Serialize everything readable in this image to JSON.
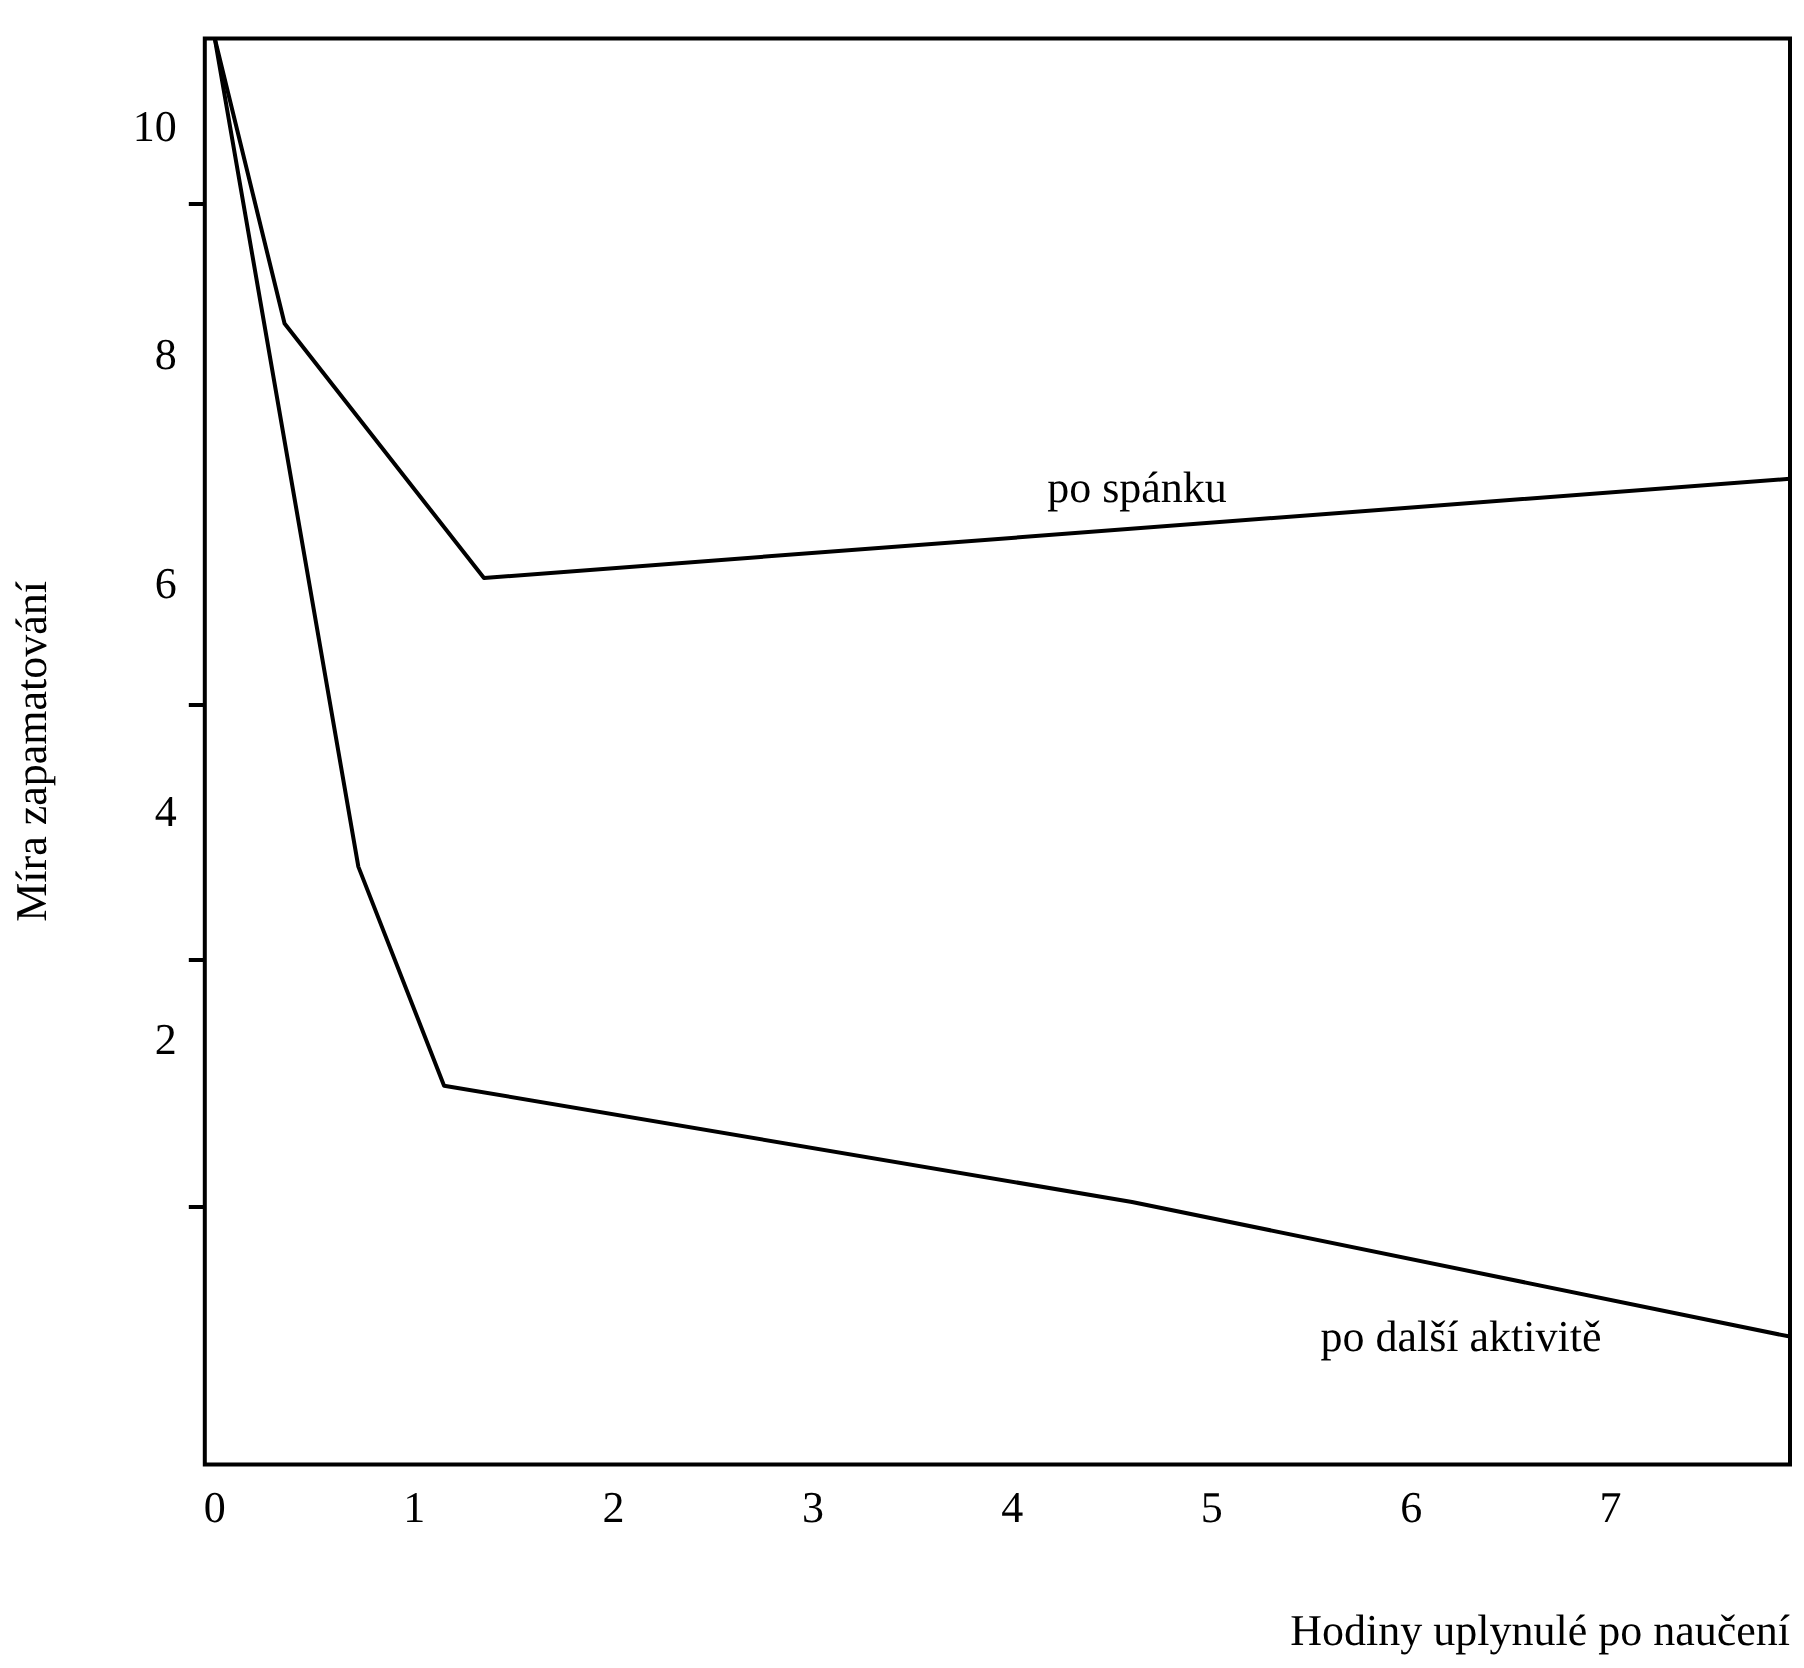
{
  "chart_data": {
    "type": "line",
    "xlabel": "Hodiny uplynulé po naučení",
    "ylabel": "Míra zapamatování",
    "xlim": [
      -0.05,
      7.9
    ],
    "xticks": [
      0,
      1,
      2,
      3,
      4,
      5,
      6,
      7
    ],
    "ylim": [
      -1.7,
      10.8
    ],
    "yticks": [
      10,
      8,
      6,
      4,
      2,
      {
        "value": 9.35,
        "label": null
      },
      {
        "value": 4.96,
        "label": null
      },
      {
        "value": 2.72,
        "label": null
      },
      {
        "value": 0.56,
        "label": null
      }
    ],
    "grid": false,
    "legend": false,
    "marker": "none",
    "line_style": "solid",
    "series": [
      {
        "name": "po spánku",
        "color": "#000000",
        "x": [
          0,
          0.35,
          1.35,
          7.9
        ],
        "values": [
          10.8,
          8.3,
          6.07,
          6.94
        ]
      },
      {
        "name": "po další aktivitě",
        "color": "#000000",
        "x": [
          0,
          0.72,
          1.15,
          4.6,
          7.9
        ],
        "values": [
          10.8,
          3.54,
          1.62,
          0.6,
          -0.58
        ]
      }
    ]
  }
}
